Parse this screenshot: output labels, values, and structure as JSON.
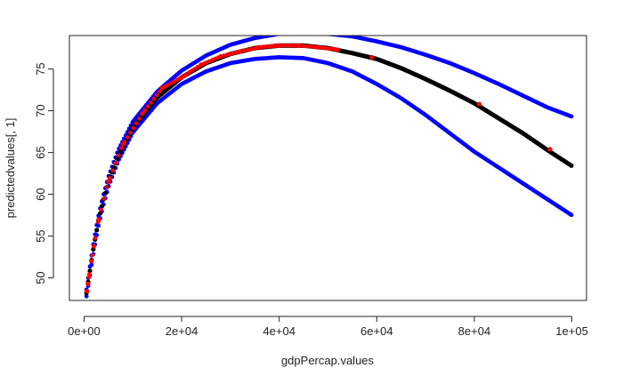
{
  "chart_data": {
    "type": "scatter",
    "xlabel": "gdpPercap.values",
    "ylabel": "predictedvalues[, 1]",
    "xlim": [
      -3000,
      103000
    ],
    "ylim": [
      47.3,
      79.0
    ],
    "x_ticks": [
      0,
      20000,
      40000,
      60000,
      80000,
      100000
    ],
    "x_tick_labels": [
      "0e+00",
      "2e+04",
      "4e+04",
      "6e+04",
      "8e+04",
      "1e+05"
    ],
    "y_ticks": [
      50,
      55,
      60,
      65,
      70,
      75
    ],
    "y_tick_labels": [
      "50",
      "55",
      "60",
      "65",
      "70",
      "75"
    ],
    "grid": false,
    "series": [
      {
        "role": "upper_interval",
        "color": "#0000ff",
        "x": [
          500,
          1000,
          2000,
          3000,
          4000,
          5000,
          7000,
          10000,
          15000,
          20000,
          25000,
          30000,
          35000,
          40000,
          45000,
          50000,
          55000,
          60000,
          65000,
          70000,
          75000,
          80000,
          85000,
          90000,
          95000,
          100000
        ],
        "y": [
          48.6,
          50.6,
          54.4,
          57.6,
          60.0,
          62.1,
          65.3,
          68.7,
          72.3,
          74.8,
          76.6,
          77.9,
          78.7,
          79.2,
          79.3,
          79.2,
          78.9,
          78.3,
          77.6,
          76.7,
          75.7,
          74.5,
          73.2,
          71.8,
          70.4,
          69.3
        ]
      },
      {
        "role": "lower_interval",
        "color": "#0000ff",
        "x": [
          500,
          1000,
          2000,
          3000,
          4000,
          5000,
          7000,
          10000,
          15000,
          20000,
          25000,
          30000,
          35000,
          40000,
          45000,
          50000,
          55000,
          60000,
          65000,
          70000,
          75000,
          80000,
          85000,
          90000,
          95000,
          100000
        ],
        "y": [
          47.8,
          49.6,
          53.2,
          56.4,
          58.8,
          60.9,
          64.0,
          67.4,
          70.9,
          73.2,
          74.7,
          75.7,
          76.2,
          76.4,
          76.3,
          75.7,
          74.7,
          73.2,
          71.5,
          69.5,
          67.3,
          65.1,
          63.2,
          61.3,
          59.4,
          57.5
        ]
      },
      {
        "role": "fit",
        "color": "#000000",
        "x": [
          500,
          1000,
          2000,
          3000,
          4000,
          5000,
          7000,
          10000,
          15000,
          20000,
          25000,
          30000,
          35000,
          40000,
          45000,
          50000,
          55000,
          60000,
          65000,
          70000,
          75000,
          80000,
          85000,
          90000,
          95000,
          100000
        ],
        "y": [
          48.2,
          50.1,
          53.8,
          57.0,
          59.4,
          61.5,
          64.6,
          68.0,
          71.6,
          74.0,
          75.7,
          76.8,
          77.5,
          77.8,
          77.8,
          77.5,
          76.9,
          76.2,
          75.1,
          73.8,
          72.4,
          70.9,
          69.1,
          67.3,
          65.3,
          63.4
        ]
      },
      {
        "role": "observed",
        "color": "#ff0000",
        "x": [
          600,
          800,
          1000,
          1500,
          2000,
          3000,
          5000,
          8000,
          12000,
          16000,
          20000,
          24000,
          28000,
          32000,
          36000,
          40000,
          44000,
          48000,
          52000,
          59000,
          81000,
          95500
        ],
        "y": [
          48.4,
          49.3,
          50.1,
          52.0,
          53.8,
          57.0,
          61.5,
          66.0,
          69.7,
          72.7,
          74.0,
          75.5,
          76.5,
          77.1,
          77.6,
          77.8,
          77.8,
          77.6,
          77.3,
          76.4,
          70.8,
          65.4
        ]
      }
    ]
  }
}
